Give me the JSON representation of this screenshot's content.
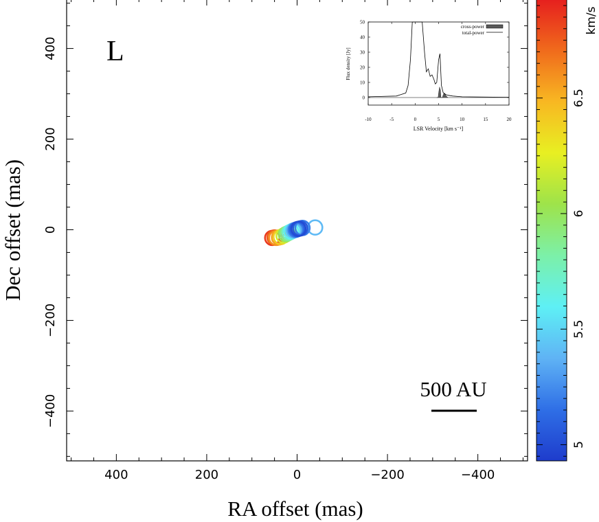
{
  "chart_data": {
    "type": "scatter",
    "panel_label": "L",
    "xlabel": "RA offset (mas)",
    "ylabel": "Dec offset (mas)",
    "xlim": [
      510,
      -510
    ],
    "ylim": [
      -510,
      510
    ],
    "x_ticks": [
      400,
      200,
      0,
      -200,
      -400
    ],
    "x_tick_labels": [
      "400",
      "200",
      "0",
      "−200",
      "−400"
    ],
    "y_ticks": [
      400,
      200,
      0,
      -200,
      -400
    ],
    "y_tick_labels": [
      "400",
      "200",
      "0",
      "−200",
      "−400"
    ],
    "scale_bar": {
      "label": "500 AU",
      "from": -300,
      "to": -400,
      "y": -400
    },
    "points": [
      {
        "x": 55,
        "y": -18,
        "v": 6.85
      },
      {
        "x": 50,
        "y": -17,
        "v": 6.75
      },
      {
        "x": 46,
        "y": -18,
        "v": 6.6
      },
      {
        "x": 40,
        "y": -17,
        "v": 6.55
      },
      {
        "x": 36,
        "y": -16,
        "v": 6.4
      },
      {
        "x": 30,
        "y": -13,
        "v": 6.2
      },
      {
        "x": 25,
        "y": -10,
        "v": 6.0
      },
      {
        "x": 21,
        "y": -8,
        "v": 5.9
      },
      {
        "x": 17,
        "y": -6,
        "v": 5.75
      },
      {
        "x": 13,
        "y": -4,
        "v": 5.6
      },
      {
        "x": 9,
        "y": -2,
        "v": 5.5
      },
      {
        "x": 6,
        "y": -1,
        "v": 5.35
      },
      {
        "x": 3,
        "y": 0,
        "v": 5.2
      },
      {
        "x": 0,
        "y": 1,
        "v": 5.1
      },
      {
        "x": -3,
        "y": 2,
        "v": 5.0
      },
      {
        "x": -7,
        "y": 3,
        "v": 5.05
      },
      {
        "x": -12,
        "y": 4,
        "v": 5.2
      },
      {
        "x": -40,
        "y": 5,
        "v": 5.4
      }
    ],
    "colorbar": {
      "unit": "km/s",
      "range": [
        4.93,
        6.93
      ],
      "ticks": [
        5,
        5.5,
        6,
        6.5
      ],
      "tick_labels": [
        "5",
        "5.5",
        "6",
        "6.5"
      ],
      "stops": [
        "#1e3ccc",
        "#2f6fe6",
        "#5fb3f5",
        "#5ef0f5",
        "#7cf0a8",
        "#9ee34a",
        "#e8ef22",
        "#f8b722",
        "#f06a1c",
        "#e61e1e"
      ]
    },
    "inset": {
      "type": "area",
      "xlabel": "LSR Velocity [km s⁻¹]",
      "ylabel": "Flux density [Jy]",
      "xlim": [
        -10,
        20
      ],
      "ylim": [
        -5,
        50
      ],
      "x_ticks": [
        -10,
        -5,
        0,
        5,
        10,
        15,
        20
      ],
      "x_tick_labels": [
        "-10",
        "-5",
        "0",
        "5",
        "10",
        "15",
        "20"
      ],
      "y_ticks": [
        0,
        10,
        20,
        30,
        40,
        50
      ],
      "y_tick_labels": [
        "0",
        "10",
        "20",
        "30",
        "40",
        "50"
      ],
      "legend": [
        "cross-power",
        "total-power"
      ],
      "total_power": {
        "x": [
          -10,
          -4,
          -3,
          -2,
          -1.5,
          -1,
          -0.6,
          -0.3,
          0,
          0.5,
          1,
          1.5,
          2,
          2.4,
          2.8,
          3.2,
          3.6,
          4,
          4.3,
          4.6,
          5,
          5.3,
          5.6,
          6,
          6.5,
          7,
          8,
          10,
          20
        ],
        "y": [
          0.5,
          1,
          2,
          3,
          8,
          25,
          50,
          50,
          50,
          50,
          50,
          50,
          30,
          17,
          19,
          14,
          15,
          12,
          9,
          10,
          25,
          29,
          8,
          3,
          2,
          1.5,
          1,
          0.5,
          0.2
        ]
      },
      "cross_power": {
        "x": [
          4.6,
          4.9,
          5.0,
          5.2,
          5.4,
          5.5,
          5.8,
          6.0,
          6.3,
          6.5,
          6.8,
          7.0
        ],
        "y": [
          0,
          0,
          3,
          7,
          5,
          0,
          0,
          2,
          3,
          1.5,
          0.5,
          0
        ]
      }
    }
  }
}
